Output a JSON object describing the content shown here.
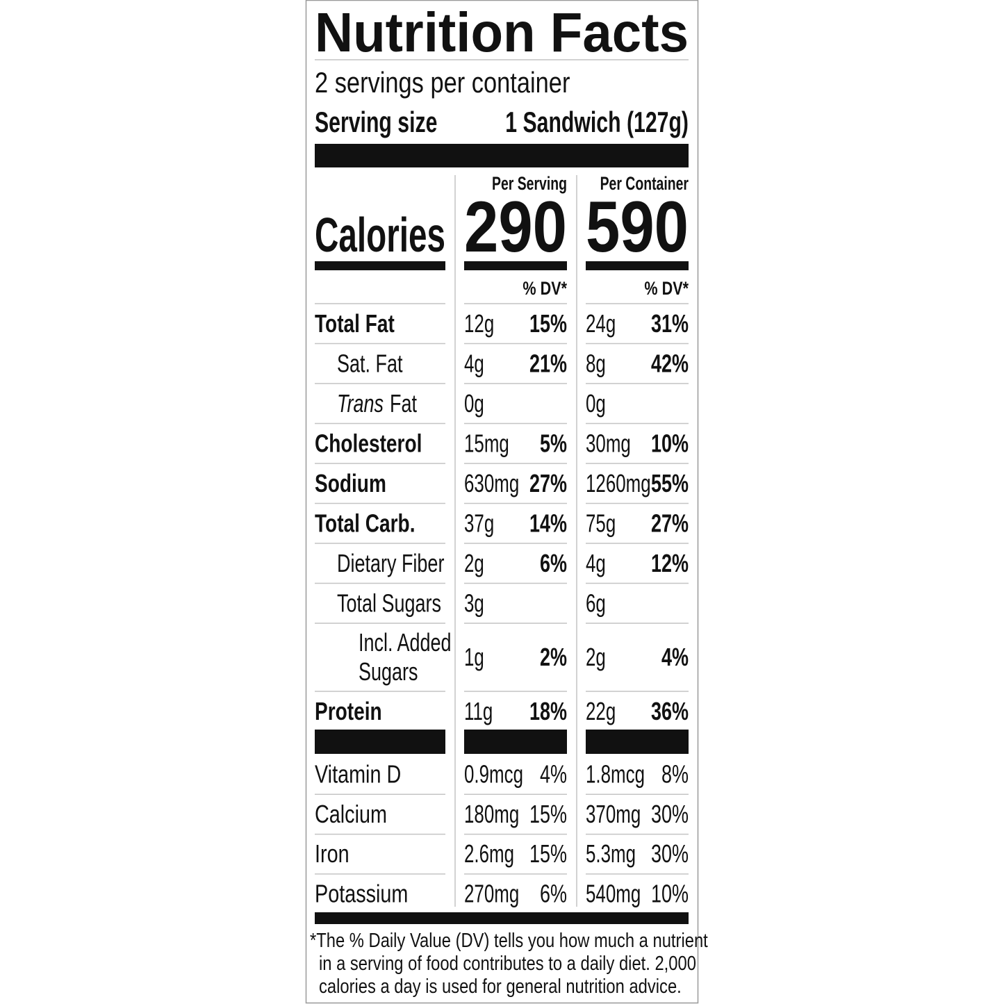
{
  "title": "Nutrition Facts",
  "servings_per_container": "2 servings per container",
  "serving_size": {
    "label": "Serving size",
    "value": "1 Sandwich (127g)"
  },
  "calories_label": "Calories",
  "columns": [
    {
      "header": "Per Serving",
      "calories": "290",
      "dv_header": "% DV*"
    },
    {
      "header": "Per Container",
      "calories": "590",
      "dv_header": "% DV*"
    }
  ],
  "nutrients": [
    {
      "name": "Total Fat",
      "bold": true,
      "indent": 0,
      "values": [
        {
          "amount": "12g",
          "dv": "15%"
        },
        {
          "amount": "24g",
          "dv": "31%"
        }
      ]
    },
    {
      "name": "Sat. Fat",
      "bold": false,
      "indent": 1,
      "values": [
        {
          "amount": "4g",
          "dv": "21%"
        },
        {
          "amount": "8g",
          "dv": "42%"
        }
      ]
    },
    {
      "name_italic": "Trans",
      "name": "Fat",
      "bold": false,
      "indent": 1,
      "values": [
        {
          "amount": "0g"
        },
        {
          "amount": "0g"
        }
      ]
    },
    {
      "name": "Cholesterol",
      "bold": true,
      "indent": 0,
      "values": [
        {
          "amount": "15mg",
          "dv": "5%"
        },
        {
          "amount": "30mg",
          "dv": "10%"
        }
      ]
    },
    {
      "name": "Sodium",
      "bold": true,
      "indent": 0,
      "values": [
        {
          "amount": "630mg",
          "dv": "27%"
        },
        {
          "amount": "1260mg",
          "dv": "55%"
        }
      ]
    },
    {
      "name": "Total Carb.",
      "bold": true,
      "indent": 0,
      "values": [
        {
          "amount": "37g",
          "dv": "14%"
        },
        {
          "amount": "75g",
          "dv": "27%"
        }
      ]
    },
    {
      "name": "Dietary Fiber",
      "bold": false,
      "indent": 1,
      "values": [
        {
          "amount": "2g",
          "dv": "6%"
        },
        {
          "amount": "4g",
          "dv": "12%"
        }
      ]
    },
    {
      "name": "Total Sugars",
      "bold": false,
      "indent": 1,
      "values": [
        {
          "amount": "3g"
        },
        {
          "amount": "6g"
        }
      ]
    },
    {
      "name_lines": [
        "Incl. Added",
        "Sugars"
      ],
      "bold": false,
      "indent": 2,
      "values": [
        {
          "amount": "1g",
          "dv": "2%"
        },
        {
          "amount": "2g",
          "dv": "4%"
        }
      ]
    },
    {
      "name": "Protein",
      "bold": true,
      "indent": 0,
      "values": [
        {
          "amount": "11g",
          "dv": "18%"
        },
        {
          "amount": "22g",
          "dv": "36%"
        }
      ]
    }
  ],
  "vitamins_minerals": [
    {
      "name": "Vitamin D",
      "values": [
        {
          "amount": "0.9mcg",
          "dv": "4%"
        },
        {
          "amount": "1.8mcg",
          "dv": "8%"
        }
      ]
    },
    {
      "name": "Calcium",
      "values": [
        {
          "amount": "180mg",
          "dv": "15%"
        },
        {
          "amount": "370mg",
          "dv": "30%"
        }
      ]
    },
    {
      "name": "Iron",
      "values": [
        {
          "amount": "2.6mg",
          "dv": "15%"
        },
        {
          "amount": "5.3mg",
          "dv": "30%"
        }
      ]
    },
    {
      "name": "Potassium",
      "values": [
        {
          "amount": "270mg",
          "dv": "6%"
        },
        {
          "amount": "540mg",
          "dv": "10%"
        }
      ]
    }
  ],
  "footnote": [
    "*The % Daily Value (DV) tells you how much a nutrient",
    "in a serving of food contributes to a daily diet. 2,000",
    "calories a day is used for general nutrition advice."
  ]
}
